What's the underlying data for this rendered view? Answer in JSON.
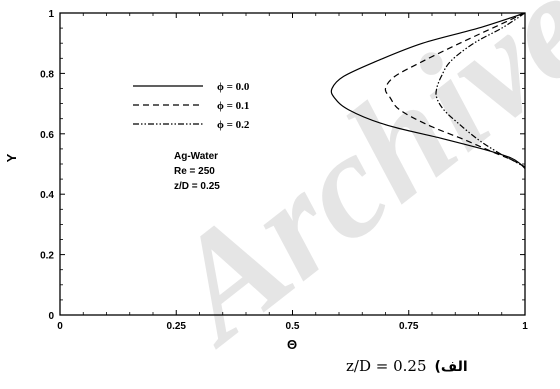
{
  "watermark": "Archive",
  "chart_data": {
    "type": "line",
    "xlabel": "Θ",
    "ylabel": "Y",
    "xlim": [
      0,
      1
    ],
    "ylim": [
      0,
      1
    ],
    "xticks": [
      "0",
      "0.25",
      "0.5",
      "0.75",
      "1"
    ],
    "yticks": [
      "0",
      "0.2",
      "0.4",
      "0.6",
      "0.8",
      "1"
    ],
    "annotation": [
      "Ag-Water",
      "Re = 250",
      "z/D = 0.25"
    ],
    "legend_position": "upper-left",
    "series": [
      {
        "name": "ϕ = 0.0",
        "style": "solid",
        "color": "#000000",
        "points": [
          [
            1.0,
            1.0
          ],
          [
            0.9,
            0.95
          ],
          [
            0.78,
            0.9
          ],
          [
            0.68,
            0.84
          ],
          [
            0.61,
            0.79
          ],
          [
            0.585,
            0.75
          ],
          [
            0.59,
            0.72
          ],
          [
            0.62,
            0.68
          ],
          [
            0.7,
            0.63
          ],
          [
            0.82,
            0.585
          ],
          [
            0.92,
            0.545
          ],
          [
            0.97,
            0.52
          ],
          [
            0.99,
            0.5
          ],
          [
            1.0,
            0.485
          ]
        ]
      },
      {
        "name": "ϕ = 0.1",
        "style": "dashed",
        "color": "#000000",
        "points": [
          [
            1.0,
            1.0
          ],
          [
            0.93,
            0.95
          ],
          [
            0.86,
            0.9
          ],
          [
            0.78,
            0.84
          ],
          [
            0.72,
            0.79
          ],
          [
            0.7,
            0.75
          ],
          [
            0.71,
            0.72
          ],
          [
            0.73,
            0.68
          ],
          [
            0.79,
            0.63
          ],
          [
            0.87,
            0.58
          ],
          [
            0.93,
            0.54
          ],
          [
            0.97,
            0.515
          ],
          [
            1.0,
            0.49
          ]
        ]
      },
      {
        "name": "ϕ = 0.2",
        "style": "dashdotdot",
        "color": "#000000",
        "points": [
          [
            1.0,
            1.0
          ],
          [
            0.95,
            0.95
          ],
          [
            0.89,
            0.9
          ],
          [
            0.84,
            0.84
          ],
          [
            0.82,
            0.79
          ],
          [
            0.81,
            0.75
          ],
          [
            0.81,
            0.72
          ],
          [
            0.825,
            0.68
          ],
          [
            0.86,
            0.63
          ],
          [
            0.9,
            0.58
          ],
          [
            0.94,
            0.54
          ],
          [
            0.97,
            0.515
          ],
          [
            1.0,
            0.49
          ]
        ]
      }
    ]
  },
  "caption": {
    "formula": "z/D = 0.25",
    "label": "(الف"
  }
}
